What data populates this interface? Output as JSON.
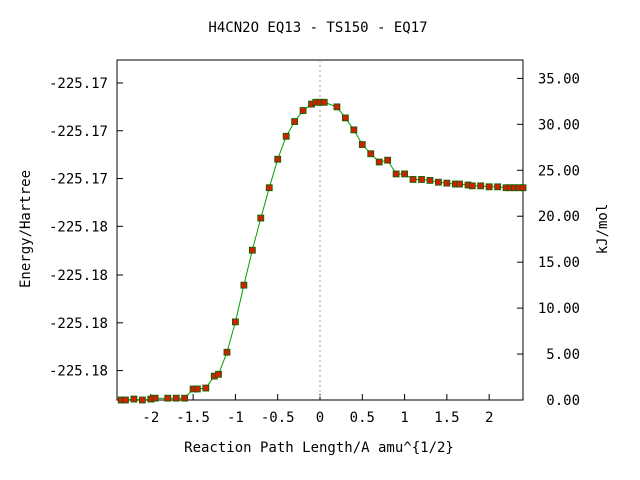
{
  "chart_data": {
    "type": "line",
    "title": "H4CN2O   EQ13 - TS150 - EQ17",
    "xlabel": "Reaction Path Length/A amu^{1/2}",
    "ylabel_left": "Energy/Hartree",
    "ylabel_right": "kJ/mol",
    "xlim": [
      -2.4,
      2.4
    ],
    "ylim_right": [
      0,
      37.0
    ],
    "x_ticks": [
      -2,
      -1.5,
      -1,
      -0.5,
      0,
      0.5,
      1,
      1.5,
      2
    ],
    "x_tick_labels": [
      "-2",
      "-1.5",
      "-1",
      "-0.5",
      "0",
      "0.5",
      "1",
      "1.5",
      "2"
    ],
    "right_ticks": [
      0,
      5,
      10,
      15,
      20,
      25,
      30,
      35
    ],
    "right_tick_labels": [
      "0.00",
      "5.00",
      "10.00",
      "15.00",
      "20.00",
      "25.00",
      "30.00",
      "35.00"
    ],
    "left_ticks_kj": [
      3.2,
      8.4,
      13.6,
      18.9,
      24.1,
      29.3,
      34.5
    ],
    "left_tick_labels": [
      "-225.18",
      "-225.18",
      "-225.18",
      "-225.18",
      "-225.17",
      "-225.17",
      "-225.17"
    ],
    "ts_marker_x": 0,
    "grid": false,
    "line_color": "#00a000",
    "marker_color": "#cc2200",
    "series": [
      {
        "x": [
          -2.35,
          -2.3,
          -2.2,
          -2.1,
          -2.0,
          -1.95,
          -1.8,
          -1.7,
          -1.6,
          -1.5,
          -1.45,
          -1.35,
          -1.25,
          -1.2,
          -1.1,
          -1.0,
          -0.9,
          -0.8,
          -0.7,
          -0.6,
          -0.5,
          -0.4,
          -0.3,
          -0.2,
          -0.1,
          -0.05,
          0.0,
          0.05,
          0.2,
          0.3,
          0.4,
          0.5,
          0.6,
          0.7,
          0.8,
          0.9,
          1.0,
          1.1,
          1.2,
          1.3,
          1.4,
          1.5,
          1.6,
          1.65,
          1.75,
          1.8,
          1.9,
          2.0,
          2.1,
          2.2,
          2.25,
          2.3,
          2.35,
          2.4
        ],
        "y": [
          0.0,
          0.0,
          0.1,
          0.0,
          0.1,
          0.2,
          0.2,
          0.2,
          0.2,
          1.2,
          1.2,
          1.3,
          2.6,
          2.8,
          5.2,
          8.5,
          12.5,
          16.3,
          19.8,
          23.1,
          26.2,
          28.7,
          30.3,
          31.5,
          32.2,
          32.4,
          32.4,
          32.4,
          31.9,
          30.7,
          29.4,
          27.8,
          26.8,
          25.9,
          26.1,
          24.6,
          24.6,
          24.0,
          24.0,
          23.9,
          23.7,
          23.6,
          23.5,
          23.5,
          23.4,
          23.3,
          23.3,
          23.2,
          23.2,
          23.1,
          23.1,
          23.1,
          23.1,
          23.1
        ]
      }
    ]
  }
}
